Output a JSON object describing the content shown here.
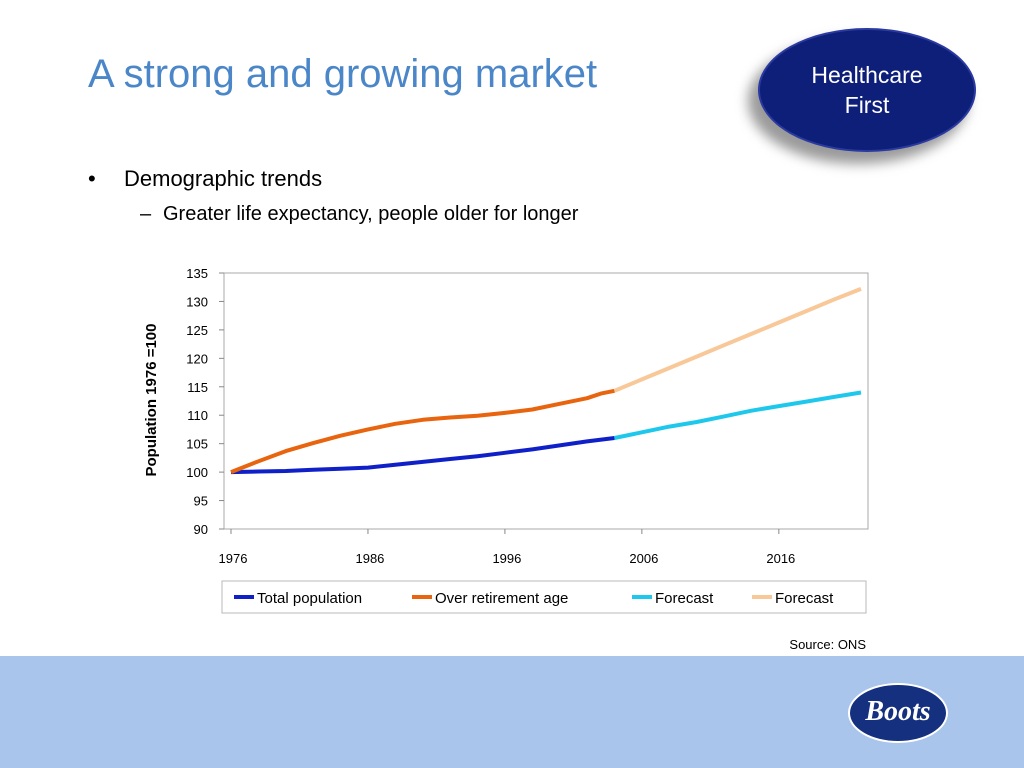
{
  "slide": {
    "title": "A strong and growing market",
    "badge": {
      "line1": "Healthcare",
      "line2": "First"
    },
    "bullet": {
      "marker": "•",
      "text": "Demographic trends"
    },
    "sub_bullet": {
      "marker": "–",
      "text": "Greater life expectancy, people older for longer"
    },
    "source": "Source: ONS",
    "logo_text": "Boots"
  },
  "chart_data": {
    "type": "line",
    "ylabel": "Population 1976 =100",
    "xlabel": "",
    "ylim": [
      90,
      135
    ],
    "y_ticks": [
      90,
      95,
      100,
      105,
      110,
      115,
      120,
      125,
      130,
      135
    ],
    "xlim": [
      1976,
      2022
    ],
    "x_ticks": [
      1976,
      1986,
      1996,
      2006,
      2016
    ],
    "grid": false,
    "legend_position": "bottom",
    "series": [
      {
        "name": "Total population",
        "color": "#1020c8",
        "x": [
          1976,
          1978,
          1980,
          1982,
          1984,
          1986,
          1988,
          1990,
          1992,
          1994,
          1996,
          1998,
          2000,
          2002,
          2004
        ],
        "y": [
          100,
          100.1,
          100.2,
          100.4,
          100.6,
          100.8,
          101.3,
          101.8,
          102.3,
          102.8,
          103.4,
          104.0,
          104.7,
          105.4,
          106.0
        ]
      },
      {
        "name": "Over retirement age",
        "color": "#e8640e",
        "x": [
          1976,
          1978,
          1980,
          1982,
          1984,
          1986,
          1988,
          1990,
          1992,
          1994,
          1996,
          1998,
          2000,
          2002,
          2003,
          2004
        ],
        "y": [
          100,
          101.9,
          103.7,
          105.1,
          106.4,
          107.5,
          108.5,
          109.2,
          109.6,
          109.9,
          110.4,
          111.0,
          112.0,
          113.0,
          113.8,
          114.3
        ]
      },
      {
        "name": "Forecast",
        "color": "#1ec8ec",
        "x": [
          2004,
          2006,
          2008,
          2010,
          2012,
          2014,
          2016,
          2018,
          2020,
          2022
        ],
        "y": [
          106.0,
          107.0,
          108.0,
          108.8,
          109.8,
          110.8,
          111.6,
          112.4,
          113.2,
          114.0
        ]
      },
      {
        "name": "Forecast",
        "color": "#f8c898",
        "x": [
          2004,
          2006,
          2008,
          2010,
          2012,
          2014,
          2016,
          2018,
          2020,
          2022
        ],
        "y": [
          114.3,
          116.3,
          118.3,
          120.3,
          122.3,
          124.3,
          126.3,
          128.3,
          130.3,
          132.2
        ]
      }
    ]
  }
}
